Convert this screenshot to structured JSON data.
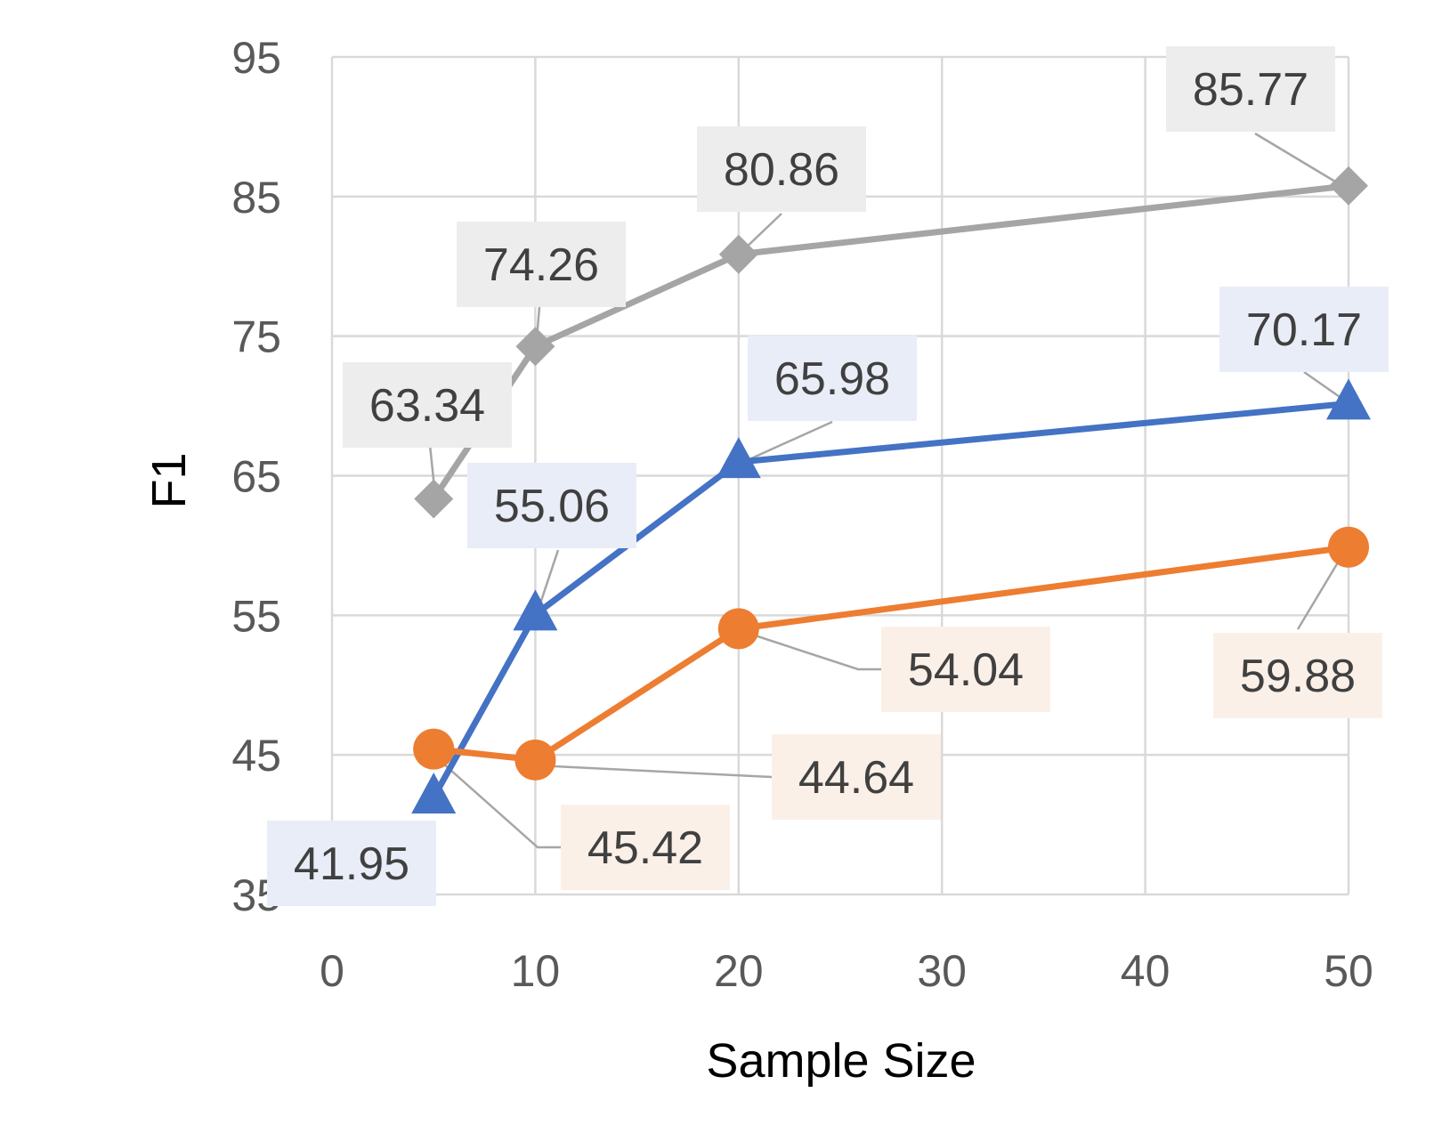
{
  "chart_data": {
    "type": "line",
    "title": "",
    "xlabel": "Sample Size",
    "ylabel": "F1",
    "x_ticks": [
      "0",
      "10",
      "20",
      "30",
      "40",
      "50"
    ],
    "y_ticks": [
      "95",
      "85",
      "75",
      "65",
      "55",
      "45",
      "35"
    ],
    "xlim": [
      0,
      50
    ],
    "ylim": [
      35,
      95
    ],
    "grid": true,
    "legend": "none",
    "x": [
      5,
      10,
      20,
      50
    ],
    "series": [
      {
        "color": "#A5A5A5",
        "marker": "diamond",
        "values": [
          63.34,
          74.26,
          80.86,
          85.77
        ],
        "labels": [
          "63.34",
          "74.26",
          "80.86",
          "85.77"
        ]
      },
      {
        "color": "#4472C4",
        "marker": "triangle",
        "values": [
          41.95,
          55.06,
          65.98,
          70.17
        ],
        "labels": [
          "41.95",
          "55.06",
          "65.98",
          "70.17"
        ]
      },
      {
        "color": "#ED7D31",
        "marker": "circle",
        "values": [
          45.42,
          44.64,
          54.04,
          59.88
        ],
        "labels": [
          "45.42",
          "44.64",
          "54.04",
          "59.88"
        ]
      }
    ]
  }
}
